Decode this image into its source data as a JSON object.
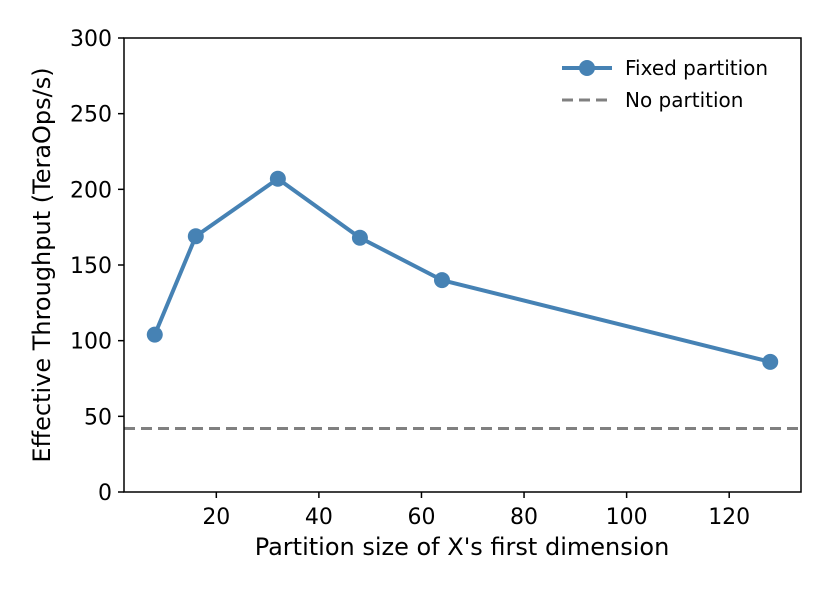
{
  "chart_data": {
    "type": "line",
    "title": "",
    "xlabel": "Partition size of X's first dimension",
    "ylabel": "Effective Throughput (TeraOps/s)",
    "xlim": [
      2,
      134
    ],
    "ylim": [
      0,
      300
    ],
    "xticks": [
      20,
      40,
      60,
      80,
      100,
      120
    ],
    "yticks": [
      0,
      50,
      100,
      150,
      200,
      250,
      300
    ],
    "grid": false,
    "legend_position": "top-right",
    "series": [
      {
        "name": "Fixed partition",
        "style": "solid-line-circle-markers",
        "color": "#4682b4",
        "x": [
          8,
          16,
          32,
          48,
          64,
          128
        ],
        "y": [
          104,
          169,
          207,
          168,
          140,
          86
        ]
      },
      {
        "name": "No partition",
        "style": "dashed-line",
        "color": "#808080",
        "y_constant": 42
      }
    ]
  }
}
